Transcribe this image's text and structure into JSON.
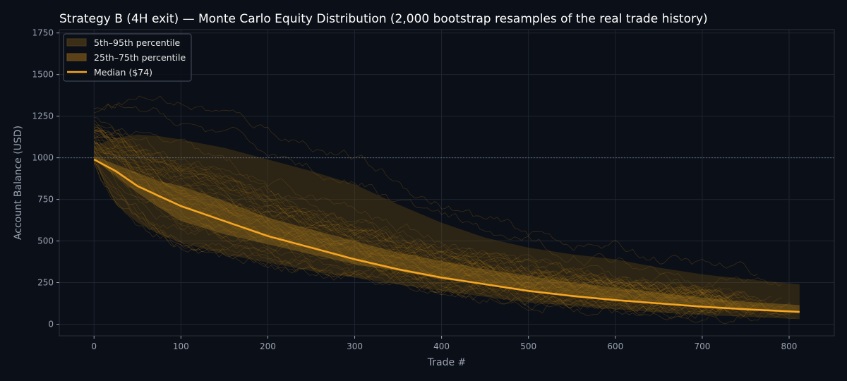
{
  "colors": {
    "background": "#0b0f17",
    "axes_frame": "#2a2f3a",
    "grid": "#1f2531",
    "median": "#f5a623",
    "band_outer": "#6b4e12",
    "band_inner": "#a8781a",
    "sample_paths": "#d9961c",
    "reference_line": "#5d6675",
    "text": "#ffffff",
    "tick_text": "#9aa3b2"
  },
  "chart_data": {
    "type": "area",
    "title": "Strategy B (4H exit) — Monte Carlo Equity Distribution (2,000 bootstrap resamples of the real trade history)",
    "xlabel": "Trade #",
    "ylabel": "Account Balance (USD)",
    "xlim": [
      -40,
      852
    ],
    "ylim": [
      -70,
      1770
    ],
    "x_ticks": [
      0,
      100,
      200,
      300,
      400,
      500,
      600,
      700,
      800
    ],
    "y_ticks": [
      0,
      250,
      500,
      750,
      1000,
      1250,
      1500,
      1750
    ],
    "grid": true,
    "legend_position": "top-left",
    "reference_line": {
      "y": 1000,
      "style": "dotted"
    },
    "x": [
      0,
      25,
      50,
      75,
      100,
      150,
      200,
      250,
      300,
      350,
      400,
      450,
      500,
      550,
      600,
      650,
      700,
      750,
      812
    ],
    "series": [
      {
        "role": "p5",
        "values": [
          980,
          720,
          610,
          540,
          490,
          420,
          370,
          320,
          280,
          240,
          200,
          165,
          130,
          110,
          90,
          70,
          55,
          45,
          30
        ]
      },
      {
        "role": "p25",
        "values": [
          990,
          890,
          790,
          700,
          620,
          540,
          480,
          420,
          360,
          320,
          270,
          240,
          200,
          175,
          150,
          125,
          105,
          85,
          65
        ]
      },
      {
        "role": "median",
        "name": "Median ($74)",
        "values": [
          990,
          920,
          830,
          770,
          710,
          620,
          530,
          460,
          390,
          330,
          280,
          240,
          200,
          170,
          145,
          125,
          105,
          90,
          74
        ]
      },
      {
        "role": "p75",
        "values": [
          1010,
          960,
          910,
          860,
          830,
          740,
          640,
          570,
          500,
          430,
          380,
          330,
          290,
          250,
          220,
          190,
          160,
          135,
          115
        ]
      },
      {
        "role": "p95",
        "values": [
          1070,
          1120,
          1140,
          1130,
          1110,
          1060,
          990,
          920,
          840,
          720,
          610,
          520,
          460,
          420,
          390,
          340,
          300,
          270,
          240
        ]
      }
    ],
    "legend": [
      {
        "label": "5th–95th percentile",
        "kind": "band_outer"
      },
      {
        "label": "25th–75th percentile",
        "kind": "band_inner"
      },
      {
        "label": "Median ($74)",
        "kind": "median"
      }
    ]
  }
}
